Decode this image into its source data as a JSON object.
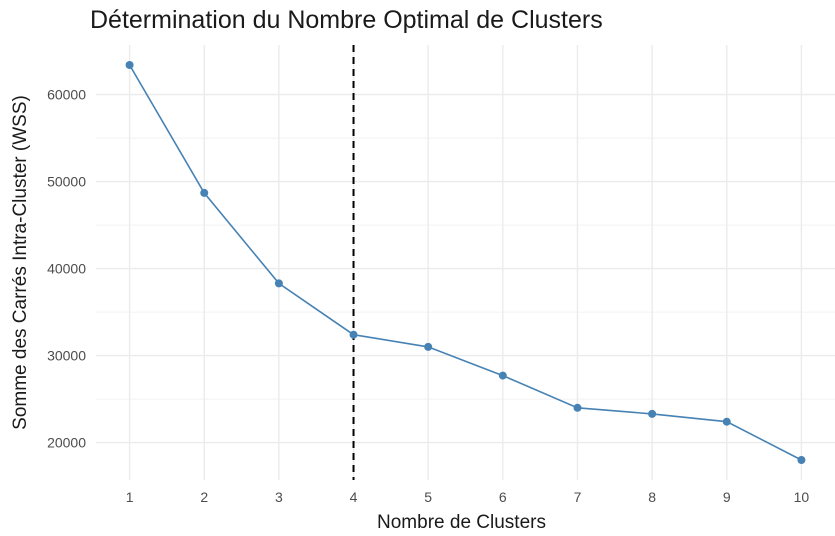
{
  "chart_data": {
    "type": "line",
    "title": "Détermination du Nombre Optimal de Clusters",
    "xlabel": "Nombre de Clusters",
    "ylabel": "Somme des Carrés Intra-Cluster (WSS)",
    "x": [
      1,
      2,
      3,
      4,
      5,
      6,
      7,
      8,
      9,
      10
    ],
    "y": [
      63400,
      48700,
      38300,
      32400,
      31000,
      27700,
      24000,
      23300,
      22400,
      18000
    ],
    "x_ticks": [
      "1",
      "2",
      "3",
      "4",
      "5",
      "6",
      "7",
      "8",
      "9",
      "10"
    ],
    "y_ticks": [
      20000,
      30000,
      40000,
      50000,
      60000
    ],
    "y_tick_labels": [
      "20000",
      "30000",
      "40000",
      "50000",
      "60000"
    ],
    "xlim": [
      0.55,
      10.45
    ],
    "ylim": [
      15700,
      65700
    ],
    "vline_x": 4,
    "vline_style": "dashed",
    "line_color": "#4682B4",
    "grid": true,
    "legend": "none"
  }
}
